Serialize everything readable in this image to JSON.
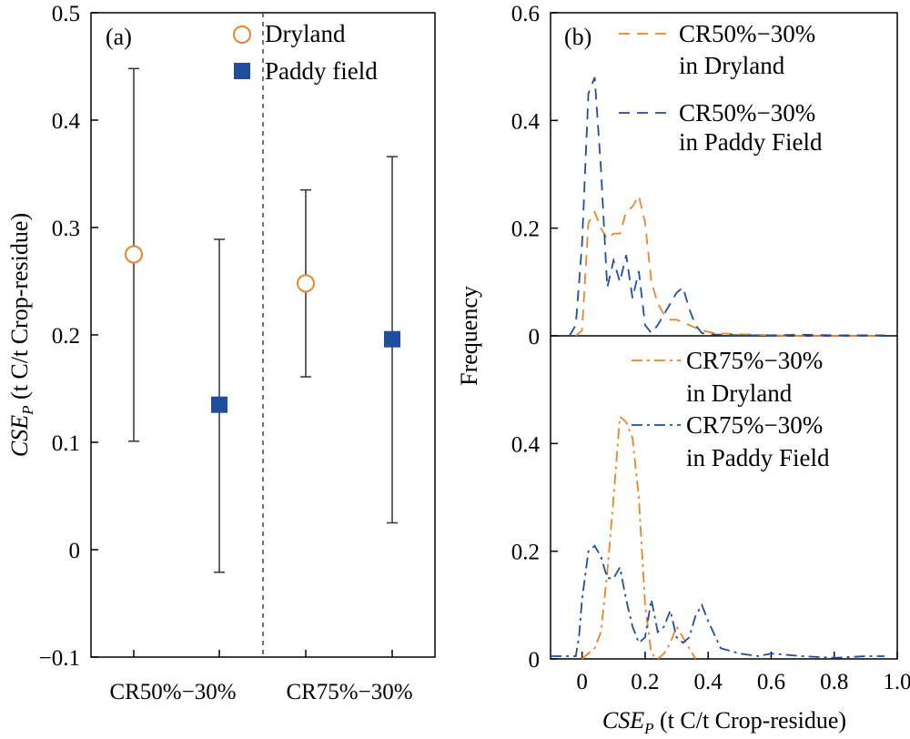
{
  "colors": {
    "dryland": "#E8862A",
    "paddy": "#1F4E9E",
    "axis": "#000000",
    "errorbar": "#333333",
    "divider": "#444444"
  },
  "chart_data": [
    {
      "panel": "(a)",
      "type": "scatter",
      "ylabel_main": "CSE",
      "ylabel_sub": "P",
      "ylabel_rest": " (t C/t Crop-residue)",
      "ylim": [
        -0.1,
        0.5
      ],
      "yticks": [
        -0.1,
        0,
        0.1,
        0.2,
        0.3,
        0.4,
        0.5
      ],
      "ytick_labels": [
        "−0.1",
        "0",
        "0.1",
        "0.2",
        "0.3",
        "0.4",
        "0.5"
      ],
      "categories": [
        "CR50%−30%",
        "CR75%−30%"
      ],
      "divider": "dashed line between scenarios",
      "legend": [
        {
          "name": "Dryland",
          "marker": "open-circle",
          "color": "dryland"
        },
        {
          "name": "Paddy field",
          "marker": "filled-square",
          "color": "paddy"
        }
      ],
      "series": [
        {
          "name": "Dryland",
          "points": [
            {
              "category": "CR50%−30%",
              "value": 0.275,
              "low": 0.101,
              "high": 0.448
            },
            {
              "category": "CR75%−30%",
              "value": 0.248,
              "low": 0.161,
              "high": 0.335
            }
          ]
        },
        {
          "name": "Paddy field",
          "points": [
            {
              "category": "CR50%−30%",
              "value": 0.135,
              "low": -0.021,
              "high": 0.289
            },
            {
              "category": "CR75%−30%",
              "value": 0.196,
              "low": 0.025,
              "high": 0.366
            }
          ]
        }
      ]
    },
    {
      "panel": "(b)",
      "type": "line",
      "ylabel": "Frequency",
      "xlabel_main": "CSE",
      "xlabel_sub": "P",
      "xlabel_rest": " (t C/t Crop-residue)",
      "xlim": [
        -0.1,
        1.0
      ],
      "xticks": [
        0,
        0.2,
        0.4,
        0.6,
        0.8,
        1.0
      ],
      "xtick_labels": [
        "0",
        "0.2",
        "0.4",
        "0.6",
        "0.8",
        "1.0"
      ],
      "top": {
        "ylim": [
          0,
          0.6
        ],
        "yticks": [
          0,
          0.2,
          0.4,
          0.6
        ],
        "ytick_labels": [
          "0",
          "0.2",
          "0.4",
          "0.6"
        ],
        "series": [
          {
            "name": "CR50%−30% in Dryland",
            "legend_lines": [
              "CR50%−30%",
              "in Dryland"
            ],
            "style": "dashed",
            "color": "dryland",
            "x": [
              -0.02,
              0.0,
              0.02,
              0.04,
              0.06,
              0.08,
              0.1,
              0.12,
              0.14,
              0.16,
              0.18,
              0.2,
              0.22,
              0.24,
              0.26,
              0.28,
              0.3,
              0.34,
              0.38,
              0.42,
              0.5,
              0.6,
              0.7,
              0.8,
              0.9,
              0.96
            ],
            "y": [
              0.0,
              0.01,
              0.21,
              0.23,
              0.2,
              0.18,
              0.19,
              0.19,
              0.23,
              0.24,
              0.26,
              0.21,
              0.1,
              0.06,
              0.04,
              0.03,
              0.03,
              0.02,
              0.01,
              0.005,
              0.003,
              0.001,
              0.0,
              0.0,
              0.0,
              0.0
            ]
          },
          {
            "name": "CR50%−30% in Paddy Field",
            "legend_lines": [
              "CR50%−30%",
              "in Paddy Field"
            ],
            "style": "dashed",
            "color": "paddy",
            "x": [
              -0.04,
              -0.02,
              0.0,
              0.02,
              0.04,
              0.06,
              0.08,
              0.1,
              0.12,
              0.14,
              0.16,
              0.18,
              0.2,
              0.22,
              0.24,
              0.26,
              0.28,
              0.3,
              0.32,
              0.34,
              0.36,
              0.38,
              0.4,
              0.44,
              0.5,
              0.6,
              0.7,
              0.8,
              0.9,
              0.96
            ],
            "y": [
              0.0,
              0.02,
              0.17,
              0.45,
              0.48,
              0.31,
              0.09,
              0.14,
              0.1,
              0.15,
              0.07,
              0.12,
              0.02,
              0.005,
              0.02,
              0.04,
              0.06,
              0.08,
              0.09,
              0.05,
              0.02,
              0.005,
              0.003,
              0.002,
              0.001,
              0.001,
              0.002,
              0.001,
              0.001,
              0.001
            ]
          }
        ]
      },
      "bottom": {
        "ylim": [
          0,
          0.6
        ],
        "yticks": [
          0,
          0.2,
          0.4
        ],
        "ytick_labels": [
          "0",
          "0.2",
          "0.4"
        ],
        "series": [
          {
            "name": "CR75%−30% in Dryland",
            "legend_lines": [
              "CR75%−30%",
              "in Dryland"
            ],
            "style": "dashdot",
            "color": "dryland",
            "x": [
              0.0,
              0.02,
              0.04,
              0.06,
              0.08,
              0.1,
              0.12,
              0.14,
              0.16,
              0.18,
              0.2,
              0.22,
              0.24,
              0.26,
              0.28,
              0.3,
              0.32,
              0.34,
              0.36
            ],
            "y": [
              0.0,
              0.01,
              0.02,
              0.05,
              0.16,
              0.3,
              0.45,
              0.44,
              0.41,
              0.3,
              0.1,
              0.01,
              0.0,
              0.01,
              0.03,
              0.06,
              0.04,
              0.02,
              0.0
            ]
          },
          {
            "name": "CR75%−30% in Paddy Field",
            "legend_lines": [
              "CR75%−30%",
              "in Paddy Field"
            ],
            "style": "dashdot",
            "color": "paddy",
            "x": [
              -0.1,
              -0.02,
              -0.01,
              0.0,
              0.02,
              0.04,
              0.06,
              0.08,
              0.1,
              0.12,
              0.14,
              0.16,
              0.18,
              0.2,
              0.22,
              0.24,
              0.26,
              0.28,
              0.3,
              0.32,
              0.34,
              0.36,
              0.38,
              0.4,
              0.44,
              0.5,
              0.56,
              0.6,
              0.7,
              0.8,
              0.9,
              0.96
            ],
            "y": [
              0.005,
              0.005,
              0.04,
              0.11,
              0.2,
              0.21,
              0.19,
              0.15,
              0.15,
              0.17,
              0.11,
              0.06,
              0.03,
              0.04,
              0.11,
              0.05,
              0.06,
              0.09,
              0.04,
              0.03,
              0.04,
              0.08,
              0.1,
              0.07,
              0.02,
              0.01,
              0.005,
              0.01,
              0.005,
              0.002,
              0.005,
              0.005
            ]
          }
        ]
      }
    }
  ]
}
